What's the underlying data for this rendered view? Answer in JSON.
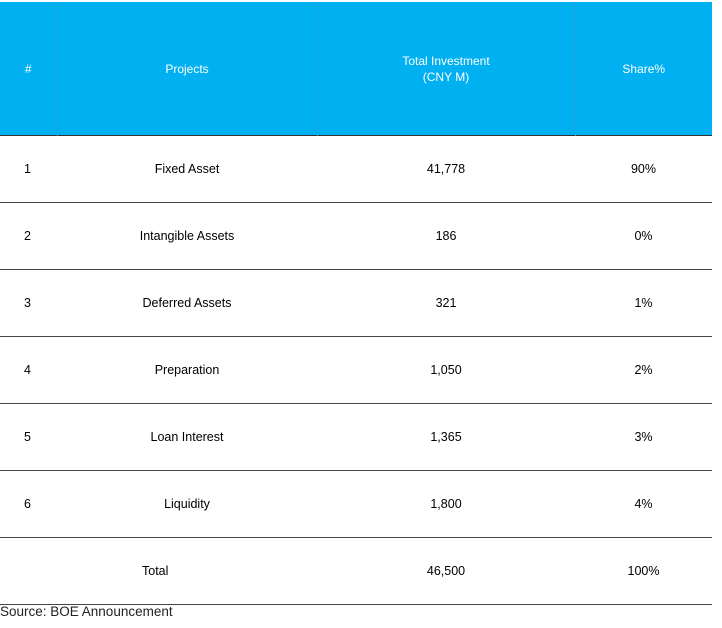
{
  "table": {
    "headers": {
      "index": "#",
      "projects": "Projects",
      "investment_line1": "Total Investment",
      "investment_line2": "(CNY M)",
      "share": "Share%"
    },
    "rows": [
      {
        "index": "1",
        "project": "Fixed Asset",
        "investment": "41,778",
        "share": "90%"
      },
      {
        "index": "2",
        "project": "Intangible Assets",
        "investment": "186",
        "share": "0%"
      },
      {
        "index": "3",
        "project": "Deferred Assets",
        "investment": "321",
        "share": "1%"
      },
      {
        "index": "4",
        "project": "Preparation",
        "investment": "1,050",
        "share": "2%"
      },
      {
        "index": "5",
        "project": "Loan Interest",
        "investment": "1,365",
        "share": "3%"
      },
      {
        "index": "6",
        "project": "Liquidity",
        "investment": "1,800",
        "share": "4%"
      }
    ],
    "total": {
      "label": "Total",
      "investment": "46,500",
      "share": "100%"
    }
  },
  "source": "Source: BOE Announcement",
  "colors": {
    "header_bg": "#00b0f0",
    "header_text": "#ffffff"
  }
}
